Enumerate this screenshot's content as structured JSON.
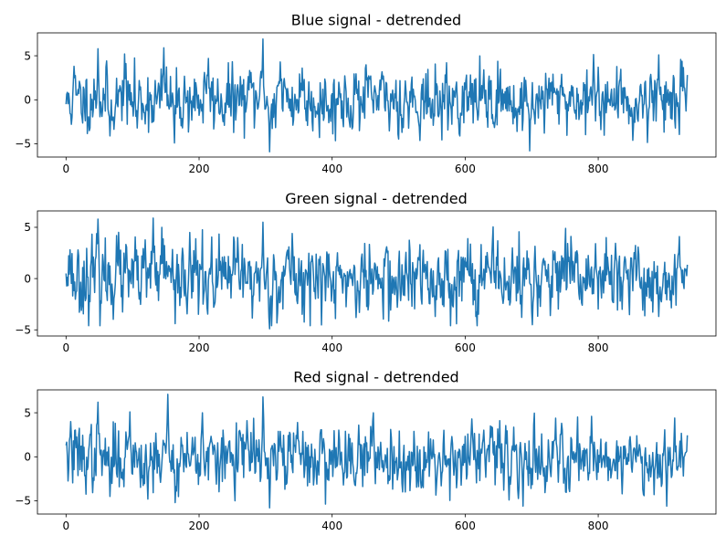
{
  "figure": {
    "colors": {
      "line": "#1f77b4",
      "axis": "#000000",
      "background": "#ffffff"
    }
  },
  "chart_data": [
    {
      "type": "line",
      "title": "Blue signal - detrended",
      "xlabel": "",
      "ylabel": "",
      "xlim": [
        -43,
        977
      ],
      "ylim": [
        -6.5,
        7.6
      ],
      "xticks": [
        0,
        200,
        400,
        600,
        800
      ],
      "yticks": [
        -5,
        0,
        5
      ],
      "grid": false,
      "legend": "none",
      "n_points": 935,
      "features": [
        [
          0,
          -0.5
        ],
        [
          12,
          3.8
        ],
        [
          48,
          5.8
        ],
        [
          66,
          -4.1
        ],
        [
          88,
          5.2
        ],
        [
          107,
          -3.2
        ],
        [
          147,
          5.9
        ],
        [
          163,
          -4.9
        ],
        [
          214,
          4.7
        ],
        [
          238,
          -2.9
        ],
        [
          278,
          3.1
        ],
        [
          296,
          6.9
        ],
        [
          300,
          -1.0
        ],
        [
          306,
          -5.9
        ],
        [
          322,
          4.3
        ],
        [
          355,
          3.6
        ],
        [
          395,
          -2.6
        ],
        [
          430,
          -3.3
        ],
        [
          458,
          2.7
        ],
        [
          505,
          -3.7
        ],
        [
          552,
          -2.9
        ],
        [
          592,
          -4.1
        ],
        [
          628,
          3.4
        ],
        [
          678,
          -3.6
        ],
        [
          697,
          -5.8
        ],
        [
          745,
          2.9
        ],
        [
          800,
          3.7
        ],
        [
          852,
          -4.6
        ],
        [
          891,
          5.1
        ],
        [
          930,
          1.3
        ]
      ],
      "series": [
        {
          "name": "",
          "seed": 11,
          "y_range": [
            -5.9,
            6.9
          ]
        }
      ]
    },
    {
      "type": "line",
      "title": "Green signal - detrended",
      "xlabel": "",
      "ylabel": "",
      "xlim": [
        -43,
        977
      ],
      "ylim": [
        -5.6,
        6.6
      ],
      "xticks": [
        0,
        200,
        400,
        600,
        800
      ],
      "yticks": [
        -5,
        0,
        5
      ],
      "grid": false,
      "legend": "none",
      "n_points": 935,
      "features": [
        [
          0,
          0.5
        ],
        [
          6,
          2.8
        ],
        [
          48,
          5.8
        ],
        [
          76,
          4.2
        ],
        [
          131,
          5.9
        ],
        [
          144,
          5.0
        ],
        [
          164,
          -4.4
        ],
        [
          186,
          4.5
        ],
        [
          222,
          -2.8
        ],
        [
          258,
          4.0
        ],
        [
          296,
          5.5
        ],
        [
          300,
          -1.0
        ],
        [
          306,
          -4.9
        ],
        [
          340,
          4.4
        ],
        [
          399,
          -2.2
        ],
        [
          441,
          -3.3
        ],
        [
          498,
          -2.8
        ],
        [
          555,
          -3.7
        ],
        [
          604,
          3.9
        ],
        [
          701,
          -4.5
        ],
        [
          735,
          2.6
        ],
        [
          796,
          3.4
        ],
        [
          836,
          -3.0
        ],
        [
          891,
          -3.7
        ],
        [
          922,
          4.1
        ],
        [
          932,
          0.9
        ]
      ],
      "series": [
        {
          "name": "",
          "seed": 23,
          "y_range": [
            -4.9,
            5.9
          ]
        }
      ]
    },
    {
      "type": "line",
      "title": "Red signal - detrended",
      "xlabel": "",
      "ylabel": "",
      "xlim": [
        -43,
        977
      ],
      "ylim": [
        -6.5,
        7.6
      ],
      "xticks": [
        0,
        200,
        400,
        600,
        800
      ],
      "yticks": [
        -5,
        0,
        5
      ],
      "grid": false,
      "legend": "none",
      "n_points": 935,
      "features": [
        [
          0,
          1.3
        ],
        [
          7,
          4.0
        ],
        [
          48,
          6.2
        ],
        [
          66,
          -4.5
        ],
        [
          96,
          5.1
        ],
        [
          123,
          -4.8
        ],
        [
          153,
          7.1
        ],
        [
          164,
          -5.2
        ],
        [
          205,
          5.0
        ],
        [
          226,
          -3.1
        ],
        [
          272,
          4.1
        ],
        [
          296,
          6.8
        ],
        [
          300,
          -1.0
        ],
        [
          306,
          -5.8
        ],
        [
          348,
          3.9
        ],
        [
          377,
          -3.1
        ],
        [
          417,
          -3.2
        ],
        [
          440,
          3.6
        ],
        [
          510,
          -4.0
        ],
        [
          564,
          -3.3
        ],
        [
          610,
          4.3
        ],
        [
          666,
          -4.9
        ],
        [
          699,
          -3.6
        ],
        [
          745,
          3.8
        ],
        [
          790,
          4.6
        ],
        [
          836,
          -4.2
        ],
        [
          884,
          -4.3
        ],
        [
          915,
          4.4
        ],
        [
          932,
          0.5
        ]
      ],
      "series": [
        {
          "name": "",
          "seed": 37,
          "y_range": [
            -5.9,
            7.1
          ]
        }
      ]
    }
  ]
}
